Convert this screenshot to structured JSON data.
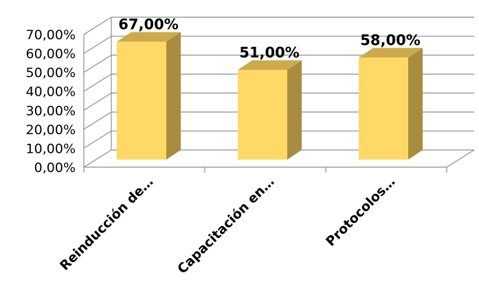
{
  "chart_data": {
    "type": "bar",
    "categories": [
      "Reinducción de…",
      "Capacitación  en…",
      "Protocolos…"
    ],
    "values": [
      67,
      51,
      58
    ],
    "data_labels": [
      "67,00%",
      "51,00%",
      "58,00%"
    ],
    "y_tick_labels": [
      "0,00%",
      "10,00%",
      "20,00%",
      "30,00%",
      "40,00%",
      "50,00%",
      "60,00%",
      "70,00%"
    ],
    "ylim": [
      0,
      70
    ],
    "y_step": 10,
    "title": "",
    "xlabel": "",
    "ylabel": "",
    "grid": true,
    "legend": "none",
    "style": "3d-column",
    "colors": {
      "bar_front": "#FFD966",
      "bar_top": "#CCAA4C",
      "bar_side": "#A88C3F",
      "grid": "#8C8C8C",
      "axis": "#8C8C8C"
    }
  }
}
